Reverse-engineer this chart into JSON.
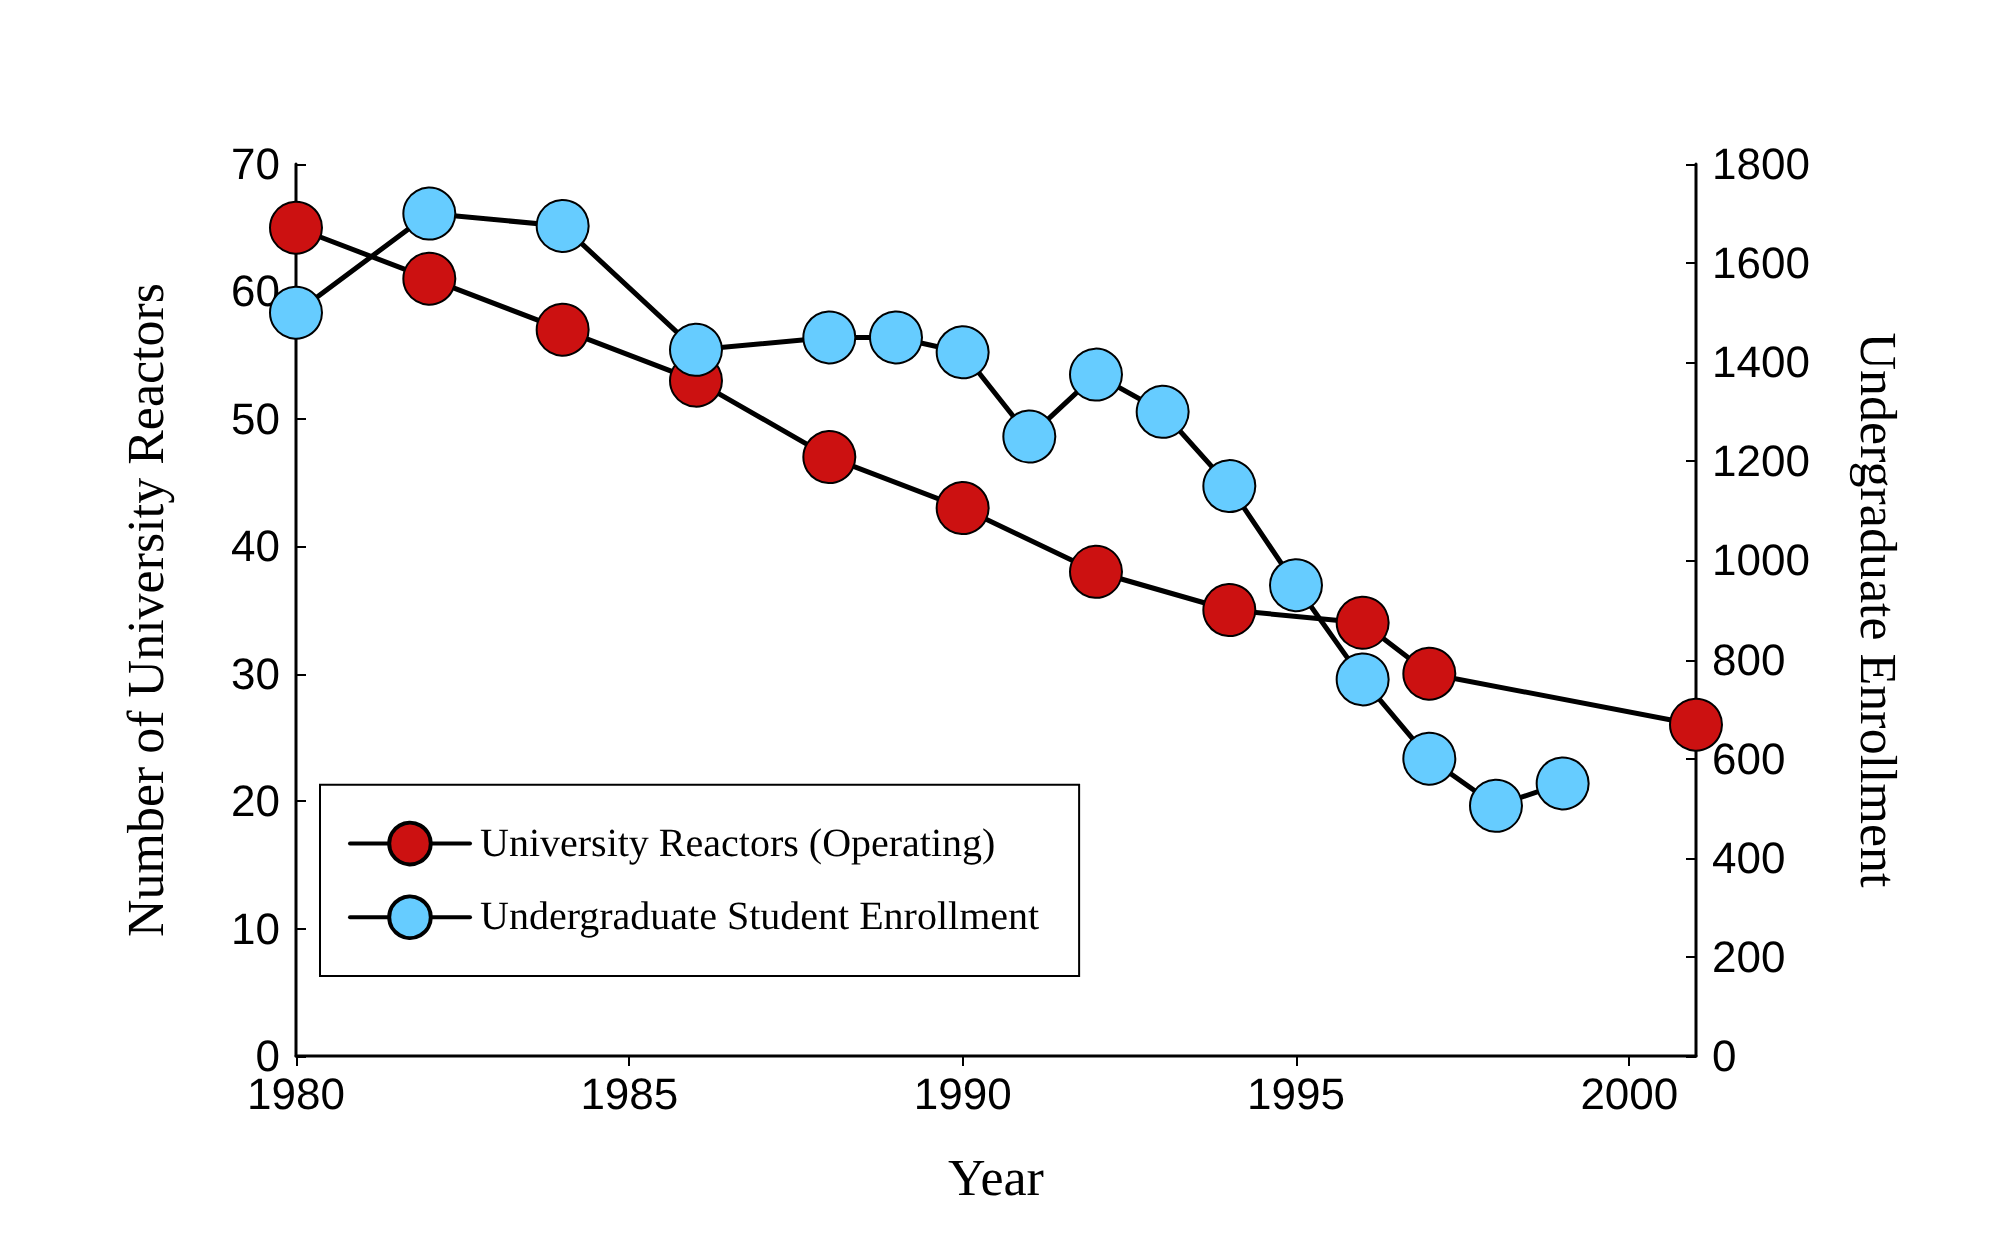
{
  "chart_data": {
    "type": "line",
    "xlabel": "Year",
    "ylabel": "Number of University Reactors",
    "y2label": "Undergraduate Enrollment",
    "xlim": [
      1980,
      2001
    ],
    "xticks": [
      1980,
      1985,
      1990,
      1995,
      2000
    ],
    "ylim": [
      0,
      70
    ],
    "yticks": [
      0,
      10,
      20,
      30,
      40,
      50,
      60,
      70
    ],
    "y2lim": [
      0,
      1800
    ],
    "y2ticks": [
      0,
      200,
      400,
      600,
      800,
      1000,
      1200,
      1400,
      1600,
      1800
    ],
    "grid": false,
    "legend": "bottom left",
    "marker": "circle",
    "line_style": "solid",
    "series": [
      {
        "name": "University Reactors (Operating)",
        "color": "#cc1111",
        "x": [
          1980,
          1982,
          1984,
          1986,
          1988,
          1990,
          1992,
          1994,
          1996,
          1997,
          2001
        ],
        "values": [
          65,
          61,
          57,
          53,
          47,
          43,
          38,
          35,
          34,
          30,
          26
        ]
      },
      {
        "name": "Undergraduate Student Enrollment",
        "color": "#66ccff",
        "axis": "y2",
        "x": [
          1980,
          1982,
          1984,
          1986,
          1988,
          1989,
          1990,
          1991,
          1992,
          1993,
          1994,
          1995,
          1996,
          1997,
          1998,
          1999
        ],
        "values": [
          1500,
          1700,
          1675,
          1425,
          1450,
          1450,
          1420,
          1250,
          1375,
          1300,
          1150,
          950,
          760,
          600,
          505,
          550
        ]
      }
    ]
  }
}
